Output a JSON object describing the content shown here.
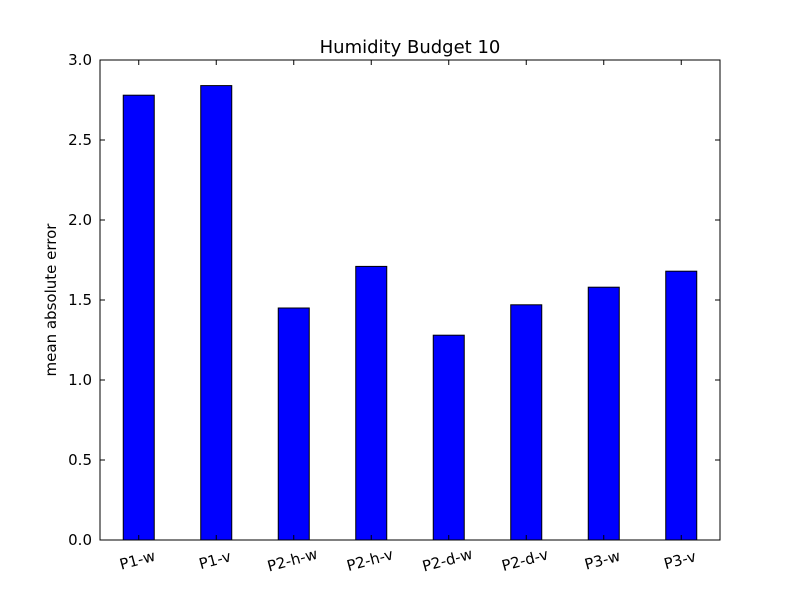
{
  "chart_data": {
    "type": "bar",
    "title": "Humidity Budget 10",
    "xlabel": "",
    "ylabel": "mean absolute error",
    "categories": [
      "P1-w",
      "P1-v",
      "P2-h-w",
      "P2-h-v",
      "P2-d-w",
      "P2-d-v",
      "P3-w",
      "P3-v"
    ],
    "values": [
      2.78,
      2.84,
      1.45,
      1.71,
      1.28,
      1.47,
      1.58,
      1.68
    ],
    "ylim": [
      0,
      3.0
    ],
    "yticks": [
      "0.0",
      "0.5",
      "1.0",
      "1.5",
      "2.0",
      "2.5",
      "3.0"
    ],
    "bar_color": "#0000ff",
    "grid": false,
    "legend": "none"
  }
}
